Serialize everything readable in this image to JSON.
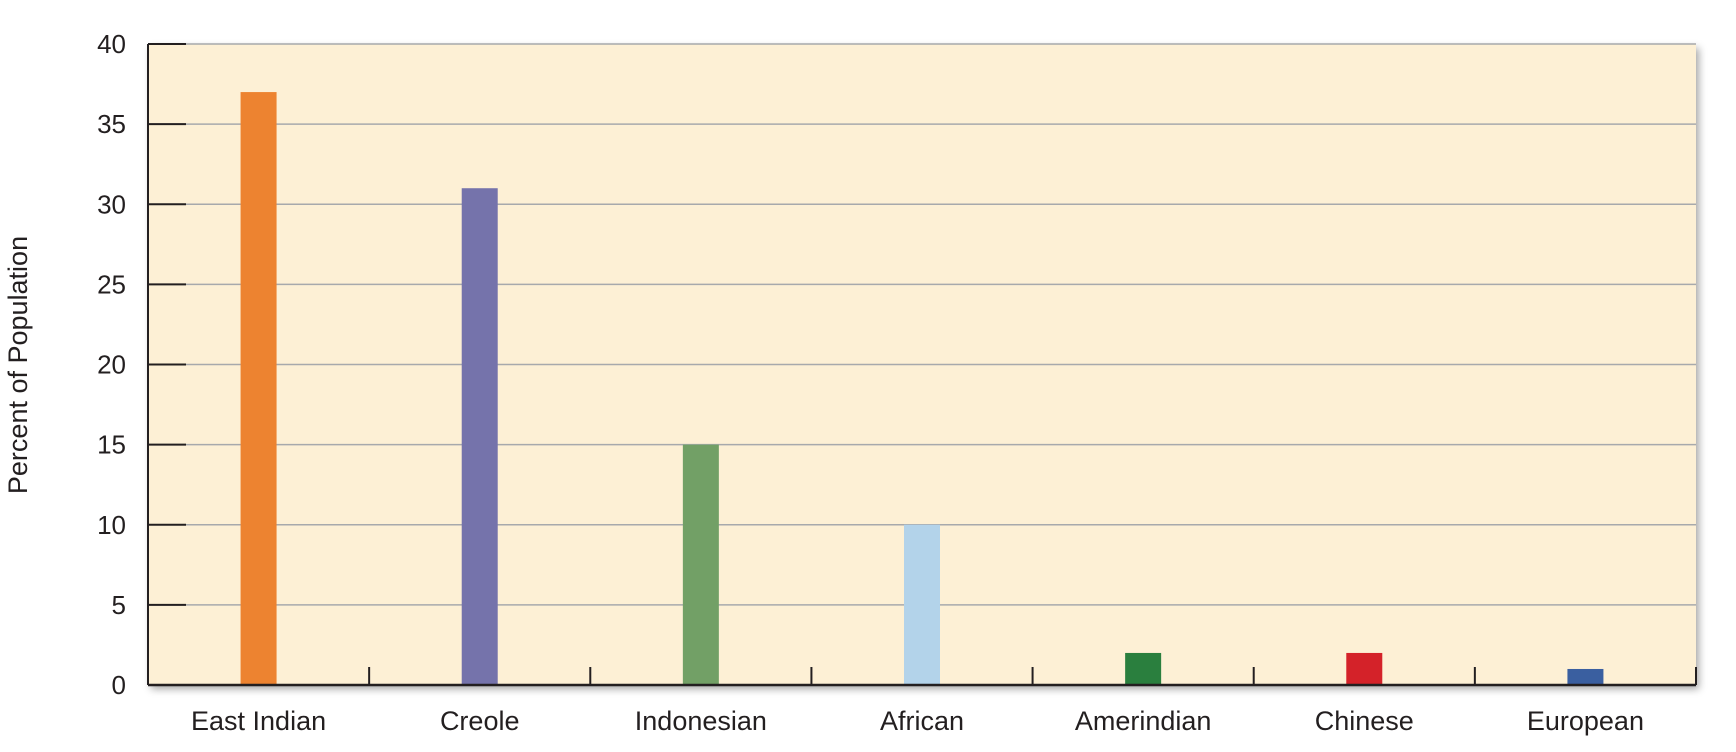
{
  "chart_data": {
    "type": "bar",
    "title": "",
    "xlabel": "",
    "ylabel": "Percent of Population",
    "ylim": [
      0,
      40
    ],
    "yticks": [
      0,
      5,
      10,
      15,
      20,
      25,
      30,
      35,
      40
    ],
    "grid": true,
    "legend": "none",
    "background_color": "#fdf0d5",
    "categories": [
      "East Indian",
      "Creole",
      "Indonesian",
      "African",
      "Amerindian",
      "Chinese",
      "European"
    ],
    "values": [
      37,
      31,
      15,
      10,
      2,
      2,
      1
    ],
    "colors": [
      "#ed8330",
      "#7573ab",
      "#72a066",
      "#b3d3ea",
      "#2a7f3e",
      "#d42229",
      "#3a5fa0"
    ]
  }
}
